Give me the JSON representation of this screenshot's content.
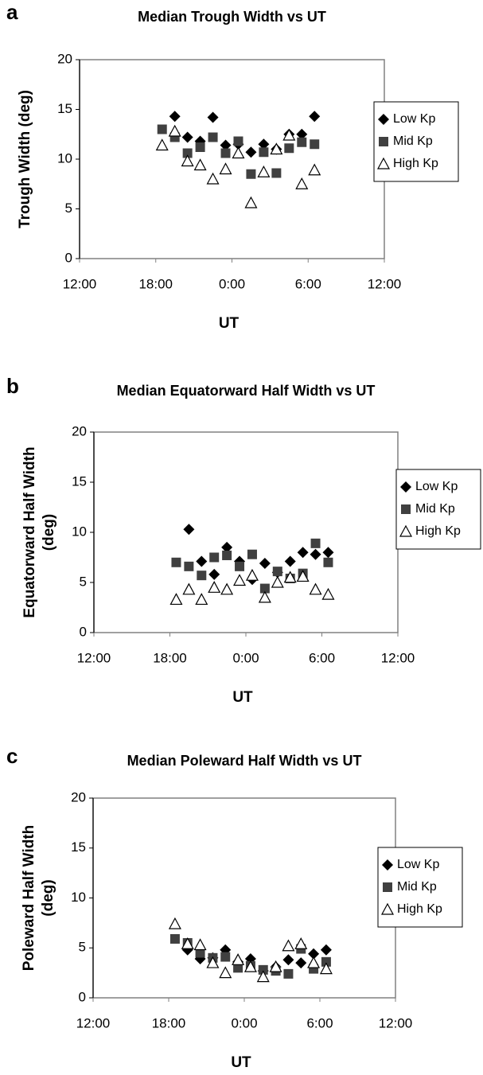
{
  "chart_data": [
    {
      "type": "scatter",
      "panel": "a",
      "title": "Median Trough Width vs UT",
      "xlabel": "UT",
      "ylabel": [
        "Trough Width (deg)"
      ],
      "xlim": [
        12,
        36
      ],
      "xticks": [
        {
          "value": 12,
          "label": "12:00"
        },
        {
          "value": 18,
          "label": "18:00"
        },
        {
          "value": 24,
          "label": "0:00"
        },
        {
          "value": 30,
          "label": "6:00"
        },
        {
          "value": 36,
          "label": "12:00"
        }
      ],
      "ylim": [
        0,
        20
      ],
      "yticks": [
        0,
        5,
        10,
        15,
        20
      ],
      "grid": false,
      "legend": "right",
      "series": [
        {
          "name": "Low Kp",
          "marker": "diamond",
          "color": "#000000",
          "x": [
            19.5,
            20.5,
            21.5,
            22.5,
            23.5,
            24.5,
            25.5,
            26.5,
            27.5,
            28.5,
            29.5,
            30.5
          ],
          "values": [
            14.3,
            12.2,
            11.8,
            14.2,
            11.4,
            11.5,
            10.7,
            11.5,
            11.0,
            12.5,
            12.5,
            14.3
          ]
        },
        {
          "name": "Mid Kp",
          "marker": "square",
          "color": "#404040",
          "x": [
            18.5,
            19.5,
            20.5,
            21.5,
            22.5,
            23.5,
            24.5,
            25.5,
            26.5,
            27.5,
            28.5,
            29.5,
            30.5
          ],
          "values": [
            13.0,
            12.2,
            10.6,
            11.2,
            12.2,
            10.6,
            11.8,
            8.5,
            10.7,
            8.6,
            11.1,
            11.7,
            11.5
          ]
        },
        {
          "name": "High Kp",
          "marker": "triangle",
          "color": "#ffffff",
          "x": [
            18.5,
            19.5,
            20.5,
            21.5,
            22.5,
            23.5,
            24.5,
            25.5,
            26.5,
            27.5,
            28.5,
            29.5,
            30.5
          ],
          "values": [
            11.4,
            12.8,
            9.8,
            9.4,
            8.0,
            9.0,
            10.6,
            5.6,
            8.7,
            11.0,
            12.4,
            7.5,
            8.9
          ]
        }
      ]
    },
    {
      "type": "scatter",
      "panel": "b",
      "title": "Median Equatorward Half Width vs UT",
      "xlabel": "UT",
      "ylabel": [
        "Equatorward Half Width",
        "(deg)"
      ],
      "xlim": [
        12,
        36
      ],
      "xticks": [
        {
          "value": 12,
          "label": "12:00"
        },
        {
          "value": 18,
          "label": "18:00"
        },
        {
          "value": 24,
          "label": "0:00"
        },
        {
          "value": 30,
          "label": "6:00"
        },
        {
          "value": 36,
          "label": "12:00"
        }
      ],
      "ylim": [
        0,
        20
      ],
      "yticks": [
        0,
        5,
        10,
        15,
        20
      ],
      "grid": false,
      "legend": "right",
      "series": [
        {
          "name": "Low Kp",
          "marker": "diamond",
          "color": "#000000",
          "x": [
            19.5,
            20.5,
            21.5,
            22.5,
            23.5,
            24.5,
            25.5,
            26.5,
            27.5,
            28.5,
            29.5,
            30.5
          ],
          "values": [
            10.3,
            7.1,
            5.8,
            8.5,
            7.1,
            5.3,
            6.9,
            6.0,
            7.1,
            8.0,
            7.8,
            8.0
          ]
        },
        {
          "name": "Mid Kp",
          "marker": "square",
          "color": "#404040",
          "x": [
            18.5,
            19.5,
            20.5,
            21.5,
            22.5,
            23.5,
            24.5,
            25.5,
            26.5,
            27.5,
            28.5,
            29.5,
            30.5
          ],
          "values": [
            7.0,
            6.6,
            5.7,
            7.5,
            7.7,
            6.6,
            7.8,
            4.4,
            6.1,
            5.4,
            5.9,
            8.9,
            7.0
          ]
        },
        {
          "name": "High Kp",
          "marker": "triangle",
          "color": "#ffffff",
          "x": [
            18.5,
            19.5,
            20.5,
            21.5,
            22.5,
            23.5,
            24.5,
            25.5,
            26.5,
            27.5,
            28.5,
            29.5,
            30.5
          ],
          "values": [
            3.3,
            4.3,
            3.3,
            4.5,
            4.3,
            5.2,
            5.7,
            3.5,
            5.0,
            5.5,
            5.6,
            4.3,
            3.8
          ]
        }
      ]
    },
    {
      "type": "scatter",
      "panel": "c",
      "title": "Median Poleward Half Width vs UT",
      "xlabel": "UT",
      "ylabel": [
        "Poleward Half Width",
        "(deg)"
      ],
      "xlim": [
        12,
        36
      ],
      "xticks": [
        {
          "value": 12,
          "label": "12:00"
        },
        {
          "value": 18,
          "label": "18:00"
        },
        {
          "value": 24,
          "label": "0:00"
        },
        {
          "value": 30,
          "label": "6:00"
        },
        {
          "value": 36,
          "label": "12:00"
        }
      ],
      "ylim": [
        0,
        20
      ],
      "yticks": [
        0,
        5,
        10,
        15,
        20
      ],
      "grid": false,
      "legend": "right",
      "series": [
        {
          "name": "Low Kp",
          "marker": "diamond",
          "color": "#000000",
          "x": [
            19.5,
            20.5,
            21.5,
            22.5,
            23.5,
            24.5,
            25.5,
            26.5,
            27.5,
            28.5,
            29.5,
            30.5
          ],
          "values": [
            4.8,
            3.9,
            4.0,
            4.8,
            3.6,
            3.9,
            2.7,
            3.1,
            3.8,
            3.5,
            4.4,
            4.8
          ]
        },
        {
          "name": "Mid Kp",
          "marker": "square",
          "color": "#404040",
          "x": [
            18.5,
            19.5,
            20.5,
            21.5,
            22.5,
            23.5,
            24.5,
            25.5,
            26.5,
            27.5,
            28.5,
            29.5,
            30.5
          ],
          "values": [
            5.9,
            5.5,
            4.5,
            4.0,
            4.1,
            3.0,
            3.2,
            2.8,
            2.7,
            2.4,
            4.9,
            2.9,
            3.6
          ]
        },
        {
          "name": "High Kp",
          "marker": "triangle",
          "color": "#ffffff",
          "x": [
            18.5,
            19.5,
            20.5,
            21.5,
            22.5,
            23.5,
            24.5,
            25.5,
            26.5,
            27.5,
            28.5,
            29.5,
            30.5
          ],
          "values": [
            7.4,
            5.4,
            5.3,
            3.5,
            2.5,
            3.8,
            3.1,
            2.1,
            3.1,
            5.2,
            5.4,
            3.5,
            2.9
          ]
        }
      ]
    }
  ]
}
